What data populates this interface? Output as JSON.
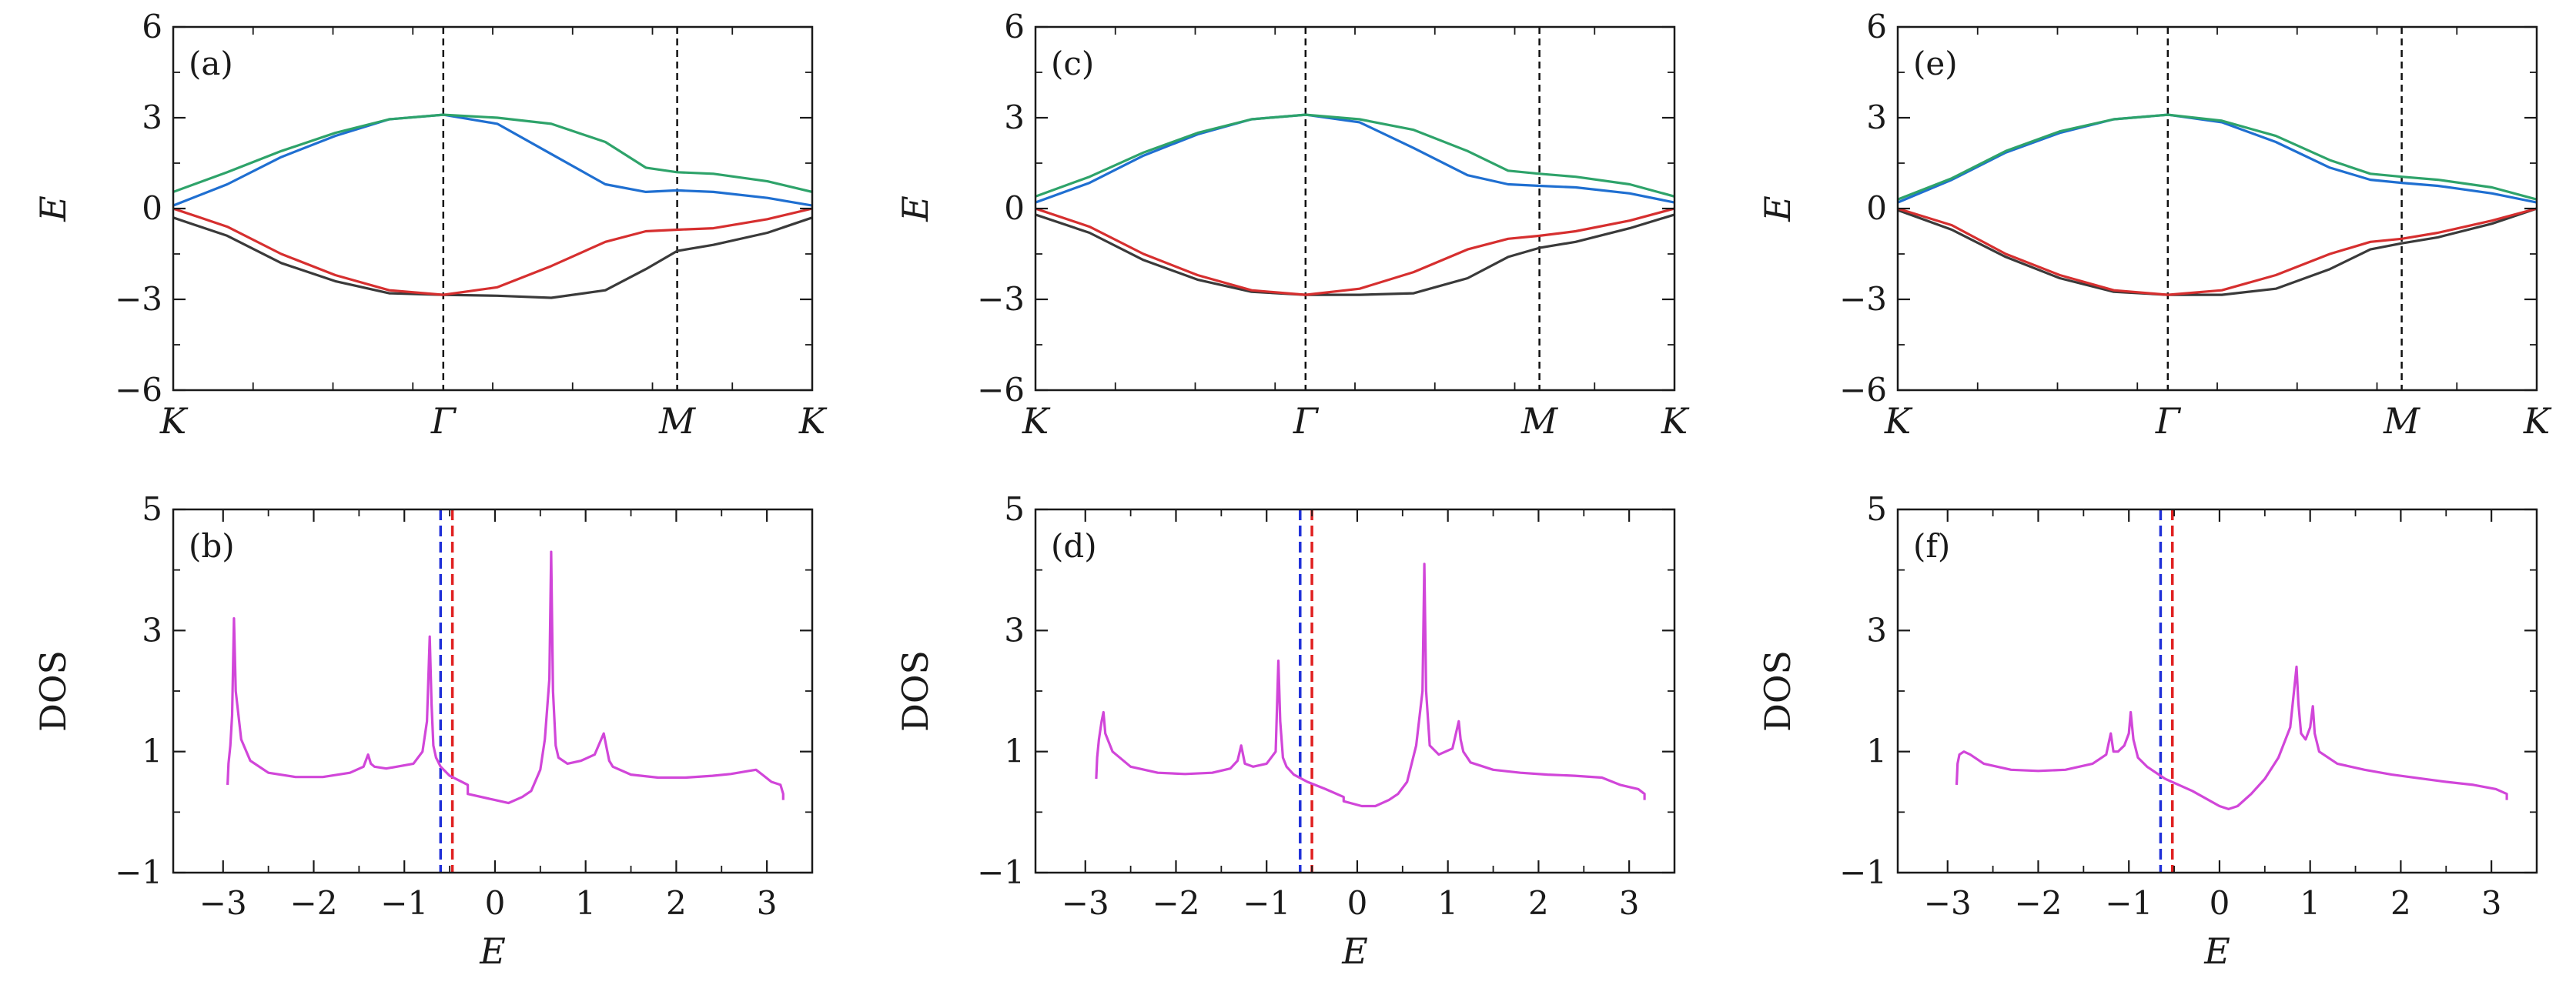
{
  "figure": {
    "description_labels": [
      "(a)",
      "(b)",
      "(c)",
      "(d)",
      "(e)",
      "(f)"
    ]
  },
  "colors": {
    "band_black": "#3a3a3a",
    "band_red": "#d62f2f",
    "band_blue": "#1f6fd1",
    "band_green": "#2ea36a",
    "dos_line": "#d146d9",
    "vline_blue": "#2030d8",
    "vline_red": "#e02020",
    "axis": "#1a1a1a",
    "sym_line": "#111111"
  },
  "chart_data": [
    {
      "type": "line",
      "panel": "(a)",
      "xlabel_ticks": [
        "K",
        "Γ",
        "M",
        "K"
      ],
      "k_positions": [
        0,
        1,
        1.866,
        2.366
      ],
      "ylabel": "E",
      "ylim": [
        -6,
        6
      ],
      "yticks": [
        -6,
        -3,
        0,
        3,
        6
      ],
      "yticklabels": [
        "−6",
        "−3",
        "0",
        "3",
        "6"
      ],
      "series": [
        {
          "name": "band1",
          "color_key": "band_black",
          "x": [
            0,
            0.2,
            0.4,
            0.6,
            0.8,
            1.0,
            1.2,
            1.4,
            1.6,
            1.75,
            1.866,
            2.0,
            2.2,
            2.366
          ],
          "y": [
            -0.3,
            -0.9,
            -1.8,
            -2.4,
            -2.8,
            -2.85,
            -2.88,
            -2.95,
            -2.7,
            -2.0,
            -1.4,
            -1.2,
            -0.8,
            -0.3
          ]
        },
        {
          "name": "band2",
          "color_key": "band_red",
          "x": [
            0,
            0.2,
            0.4,
            0.6,
            0.8,
            1.0,
            1.2,
            1.4,
            1.6,
            1.75,
            1.866,
            2.0,
            2.2,
            2.366
          ],
          "y": [
            0.0,
            -0.6,
            -1.5,
            -2.2,
            -2.7,
            -2.85,
            -2.6,
            -1.9,
            -1.1,
            -0.75,
            -0.7,
            -0.65,
            -0.35,
            0.0
          ]
        },
        {
          "name": "band3",
          "color_key": "band_blue",
          "x": [
            0,
            0.2,
            0.4,
            0.6,
            0.8,
            1.0,
            1.2,
            1.4,
            1.6,
            1.75,
            1.866,
            2.0,
            2.2,
            2.366
          ],
          "y": [
            0.1,
            0.8,
            1.7,
            2.4,
            2.95,
            3.1,
            2.8,
            1.8,
            0.8,
            0.55,
            0.6,
            0.55,
            0.35,
            0.1
          ]
        },
        {
          "name": "band4",
          "color_key": "band_green",
          "x": [
            0,
            0.2,
            0.4,
            0.6,
            0.8,
            1.0,
            1.2,
            1.4,
            1.6,
            1.75,
            1.866,
            2.0,
            2.2,
            2.366
          ],
          "y": [
            0.55,
            1.2,
            1.9,
            2.5,
            2.95,
            3.1,
            3.0,
            2.8,
            2.2,
            1.35,
            1.2,
            1.15,
            0.9,
            0.55
          ]
        }
      ]
    },
    {
      "type": "line",
      "panel": "(b)",
      "xlabel": "E",
      "ylabel": "DOS",
      "xlim": [
        -3.55,
        3.5
      ],
      "ylim": [
        -1,
        5
      ],
      "xticks": [
        -3,
        -2,
        -1,
        0,
        1,
        2,
        3
      ],
      "xticklabels": [
        "−3",
        "−2",
        "−1",
        "0",
        "1",
        "2",
        "3"
      ],
      "yticks": [
        -1,
        1,
        3,
        5
      ],
      "yticklabels": [
        "−1",
        "1",
        "3",
        "5"
      ],
      "vlines": [
        {
          "x": -0.6,
          "color_key": "vline_blue"
        },
        {
          "x": -0.47,
          "color_key": "vline_red"
        }
      ],
      "series": [
        {
          "name": "DOS",
          "color_key": "dos_line",
          "x": [
            -2.95,
            -2.94,
            -2.92,
            -2.9,
            -2.88,
            -2.86,
            -2.8,
            -2.7,
            -2.5,
            -2.2,
            -1.9,
            -1.6,
            -1.45,
            -1.4,
            -1.37,
            -1.33,
            -1.2,
            -0.9,
            -0.8,
            -0.75,
            -0.72,
            -0.7,
            -0.68,
            -0.65,
            -0.6,
            -0.5,
            -0.3,
            -0.3,
            0.0,
            0.15,
            0.3,
            0.4,
            0.5,
            0.55,
            0.6,
            0.62,
            0.64,
            0.67,
            0.7,
            0.8,
            0.95,
            1.1,
            1.2,
            1.24,
            1.26,
            1.3,
            1.5,
            1.8,
            2.1,
            2.4,
            2.6,
            2.8,
            2.88,
            2.95,
            3.05,
            3.15,
            3.18,
            3.18
          ],
          "y": [
            0.45,
            0.8,
            1.1,
            1.6,
            3.2,
            2.0,
            1.2,
            0.85,
            0.65,
            0.58,
            0.58,
            0.65,
            0.75,
            0.95,
            0.8,
            0.75,
            0.72,
            0.8,
            1.0,
            1.5,
            2.9,
            1.8,
            1.1,
            0.9,
            0.75,
            0.6,
            0.45,
            0.3,
            0.2,
            0.15,
            0.25,
            0.35,
            0.7,
            1.2,
            2.2,
            4.3,
            2.0,
            1.1,
            0.9,
            0.8,
            0.85,
            0.95,
            1.3,
            1.0,
            0.85,
            0.75,
            0.62,
            0.57,
            0.57,
            0.6,
            0.63,
            0.68,
            0.7,
            0.62,
            0.5,
            0.45,
            0.3,
            0.2
          ]
        }
      ]
    },
    {
      "type": "line",
      "panel": "(c)",
      "xlabel_ticks": [
        "K",
        "Γ",
        "M",
        "K"
      ],
      "k_positions": [
        0,
        1,
        1.866,
        2.366
      ],
      "ylabel": "E",
      "ylim": [
        -6,
        6
      ],
      "yticks": [
        -6,
        -3,
        0,
        3,
        6
      ],
      "yticklabels": [
        "−6",
        "−3",
        "0",
        "3",
        "6"
      ],
      "series": [
        {
          "name": "band1",
          "color_key": "band_black",
          "x": [
            0,
            0.2,
            0.4,
            0.6,
            0.8,
            1.0,
            1.2,
            1.4,
            1.6,
            1.75,
            1.866,
            2.0,
            2.2,
            2.366
          ],
          "y": [
            -0.2,
            -0.8,
            -1.7,
            -2.35,
            -2.75,
            -2.85,
            -2.85,
            -2.8,
            -2.3,
            -1.6,
            -1.3,
            -1.1,
            -0.65,
            -0.2
          ]
        },
        {
          "name": "band2",
          "color_key": "band_red",
          "x": [
            0,
            0.2,
            0.4,
            0.6,
            0.8,
            1.0,
            1.2,
            1.4,
            1.6,
            1.75,
            1.866,
            2.0,
            2.2,
            2.366
          ],
          "y": [
            0.0,
            -0.6,
            -1.5,
            -2.2,
            -2.7,
            -2.85,
            -2.65,
            -2.1,
            -1.35,
            -1.0,
            -0.9,
            -0.75,
            -0.4,
            0.0
          ]
        },
        {
          "name": "band3",
          "color_key": "band_blue",
          "x": [
            0,
            0.2,
            0.4,
            0.6,
            0.8,
            1.0,
            1.2,
            1.4,
            1.6,
            1.75,
            1.866,
            2.0,
            2.2,
            2.366
          ],
          "y": [
            0.2,
            0.85,
            1.75,
            2.45,
            2.95,
            3.1,
            2.85,
            2.0,
            1.1,
            0.8,
            0.75,
            0.7,
            0.5,
            0.2
          ]
        },
        {
          "name": "band4",
          "color_key": "band_green",
          "x": [
            0,
            0.2,
            0.4,
            0.6,
            0.8,
            1.0,
            1.2,
            1.4,
            1.6,
            1.75,
            1.866,
            2.0,
            2.2,
            2.366
          ],
          "y": [
            0.4,
            1.05,
            1.85,
            2.5,
            2.95,
            3.1,
            2.95,
            2.6,
            1.9,
            1.25,
            1.15,
            1.05,
            0.8,
            0.4
          ]
        }
      ]
    },
    {
      "type": "line",
      "panel": "(d)",
      "xlabel": "E",
      "ylabel": "DOS",
      "xlim": [
        -3.55,
        3.5
      ],
      "ylim": [
        -1,
        5
      ],
      "xticks": [
        -3,
        -2,
        -1,
        0,
        1,
        2,
        3
      ],
      "xticklabels": [
        "−3",
        "−2",
        "−1",
        "0",
        "1",
        "2",
        "3"
      ],
      "yticks": [
        -1,
        1,
        3,
        5
      ],
      "yticklabels": [
        "−1",
        "1",
        "3",
        "5"
      ],
      "vlines": [
        {
          "x": -0.63,
          "color_key": "vline_blue"
        },
        {
          "x": -0.5,
          "color_key": "vline_red"
        }
      ],
      "series": [
        {
          "name": "DOS",
          "color_key": "dos_line",
          "x": [
            -2.88,
            -2.87,
            -2.85,
            -2.82,
            -2.8,
            -2.78,
            -2.7,
            -2.5,
            -2.2,
            -1.9,
            -1.6,
            -1.4,
            -1.32,
            -1.28,
            -1.24,
            -1.15,
            -1.0,
            -0.9,
            -0.87,
            -0.85,
            -0.82,
            -0.78,
            -0.7,
            -0.55,
            -0.35,
            -0.15,
            -0.15,
            0.05,
            0.2,
            0.35,
            0.45,
            0.55,
            0.65,
            0.72,
            0.74,
            0.76,
            0.8,
            0.9,
            1.05,
            1.12,
            1.14,
            1.17,
            1.25,
            1.5,
            1.8,
            2.1,
            2.4,
            2.7,
            2.9,
            3.1,
            3.17,
            3.17
          ],
          "y": [
            0.55,
            0.9,
            1.2,
            1.5,
            1.65,
            1.3,
            1.0,
            0.75,
            0.65,
            0.63,
            0.65,
            0.72,
            0.85,
            1.1,
            0.8,
            0.75,
            0.8,
            1.0,
            2.5,
            1.5,
            0.9,
            0.75,
            0.62,
            0.5,
            0.38,
            0.25,
            0.18,
            0.1,
            0.1,
            0.2,
            0.3,
            0.5,
            1.1,
            2.0,
            4.1,
            2.0,
            1.1,
            0.95,
            1.05,
            1.5,
            1.2,
            1.0,
            0.82,
            0.7,
            0.65,
            0.62,
            0.6,
            0.57,
            0.45,
            0.38,
            0.3,
            0.2
          ]
        }
      ]
    },
    {
      "type": "line",
      "panel": "(e)",
      "xlabel_ticks": [
        "K",
        "Γ",
        "M",
        "K"
      ],
      "k_positions": [
        0,
        1,
        1.866,
        2.366
      ],
      "ylabel": "E",
      "ylim": [
        -6,
        6
      ],
      "yticks": [
        -6,
        -3,
        0,
        3,
        6
      ],
      "yticklabels": [
        "−6",
        "−3",
        "0",
        "3",
        "6"
      ],
      "series": [
        {
          "name": "band1",
          "color_key": "band_black",
          "x": [
            0,
            0.2,
            0.4,
            0.6,
            0.8,
            1.0,
            1.2,
            1.4,
            1.6,
            1.75,
            1.866,
            2.0,
            2.2,
            2.366
          ],
          "y": [
            -0.05,
            -0.7,
            -1.6,
            -2.3,
            -2.75,
            -2.85,
            -2.85,
            -2.65,
            -2.0,
            -1.35,
            -1.15,
            -0.95,
            -0.5,
            0.0
          ]
        },
        {
          "name": "band2",
          "color_key": "band_red",
          "x": [
            0,
            0.2,
            0.4,
            0.6,
            0.8,
            1.0,
            1.2,
            1.4,
            1.6,
            1.75,
            1.866,
            2.0,
            2.2,
            2.366
          ],
          "y": [
            0.0,
            -0.55,
            -1.5,
            -2.2,
            -2.7,
            -2.85,
            -2.7,
            -2.2,
            -1.5,
            -1.1,
            -1.0,
            -0.8,
            -0.4,
            0.0
          ]
        },
        {
          "name": "band3",
          "color_key": "band_blue",
          "x": [
            0,
            0.2,
            0.4,
            0.6,
            0.8,
            1.0,
            1.2,
            1.4,
            1.6,
            1.75,
            1.866,
            2.0,
            2.2,
            2.366
          ],
          "y": [
            0.2,
            0.95,
            1.85,
            2.5,
            2.95,
            3.1,
            2.85,
            2.2,
            1.35,
            0.95,
            0.85,
            0.75,
            0.5,
            0.2
          ]
        },
        {
          "name": "band4",
          "color_key": "band_green",
          "x": [
            0,
            0.2,
            0.4,
            0.6,
            0.8,
            1.0,
            1.2,
            1.4,
            1.6,
            1.75,
            1.866,
            2.0,
            2.2,
            2.366
          ],
          "y": [
            0.3,
            1.0,
            1.9,
            2.55,
            2.95,
            3.1,
            2.9,
            2.4,
            1.6,
            1.15,
            1.05,
            0.95,
            0.7,
            0.3
          ]
        }
      ]
    },
    {
      "type": "line",
      "panel": "(f)",
      "xlabel": "E",
      "ylabel": "DOS",
      "xlim": [
        -3.55,
        3.5
      ],
      "ylim": [
        -1,
        5
      ],
      "xticks": [
        -3,
        -2,
        -1,
        0,
        1,
        2,
        3
      ],
      "xticklabels": [
        "−3",
        "−2",
        "−1",
        "0",
        "1",
        "2",
        "3"
      ],
      "yticks": [
        -1,
        1,
        3,
        5
      ],
      "yticklabels": [
        "−1",
        "1",
        "3",
        "5"
      ],
      "vlines": [
        {
          "x": -0.65,
          "color_key": "vline_blue"
        },
        {
          "x": -0.52,
          "color_key": "vline_red"
        }
      ],
      "series": [
        {
          "name": "DOS",
          "color_key": "dos_line",
          "x": [
            -2.9,
            -2.89,
            -2.87,
            -2.82,
            -2.75,
            -2.6,
            -2.3,
            -2.0,
            -1.7,
            -1.4,
            -1.25,
            -1.2,
            -1.17,
            -1.12,
            -1.05,
            -1.0,
            -0.98,
            -0.95,
            -0.9,
            -0.8,
            -0.6,
            -0.3,
            0.0,
            0.1,
            0.2,
            0.35,
            0.5,
            0.65,
            0.78,
            0.85,
            0.87,
            0.9,
            0.95,
            1.0,
            1.03,
            1.05,
            1.1,
            1.3,
            1.6,
            1.9,
            2.2,
            2.5,
            2.8,
            3.05,
            3.17,
            3.17
          ],
          "y": [
            0.45,
            0.8,
            0.95,
            1.0,
            0.95,
            0.8,
            0.7,
            0.68,
            0.7,
            0.8,
            0.95,
            1.3,
            1.0,
            1.0,
            1.1,
            1.3,
            1.65,
            1.2,
            0.9,
            0.75,
            0.55,
            0.35,
            0.1,
            0.05,
            0.1,
            0.3,
            0.55,
            0.9,
            1.4,
            2.4,
            1.8,
            1.3,
            1.2,
            1.4,
            1.75,
            1.3,
            1.0,
            0.8,
            0.7,
            0.62,
            0.56,
            0.5,
            0.45,
            0.38,
            0.3,
            0.2
          ]
        }
      ]
    }
  ]
}
